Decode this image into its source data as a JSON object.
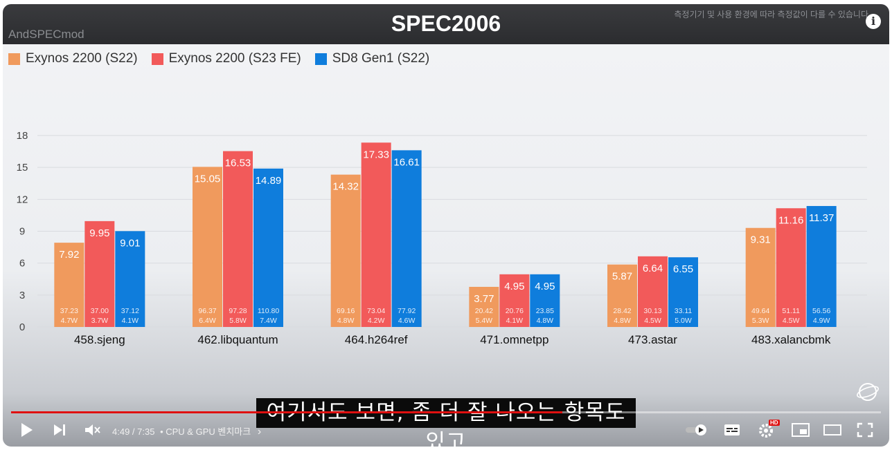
{
  "video": {
    "watermark": "AndSPECmod",
    "disclaimer": "측정기기 및 사용 환경에 따라 측정값이 다를 수 있습니다",
    "info_icon": "i",
    "caption": "여기서도 보면, 좀 더 잘 나오는 항목도 있고",
    "time": "4:49 / 7:35",
    "chapter": "• CPU & GPU 벤치마크",
    "chapter_chevron": "›",
    "progress": 0.634,
    "hd_badge": "HD",
    "icons": [
      "play-icon",
      "next-icon",
      "mute-icon",
      "autoplay-toggle-icon",
      "subtitles-icon",
      "settings-icon",
      "miniplayer-icon",
      "theater-icon",
      "fullscreen-icon"
    ]
  },
  "chart_data": {
    "type": "bar",
    "title": "SPEC2006",
    "categories": [
      "458.sjeng",
      "462.libquantum",
      "464.h264ref",
      "471.omnetpp",
      "473.astar",
      "483.xalancbmk"
    ],
    "series": [
      {
        "name": "Exynos 2200 (S22)",
        "color": "#f09a5d",
        "values": [
          7.92,
          15.05,
          14.32,
          3.77,
          5.87,
          9.31
        ],
        "sub_top": [
          "37.23",
          "96.37",
          "69.16",
          "20.42",
          "28.42",
          "49.64"
        ],
        "sub_bottom": [
          "4.7W",
          "6.4W",
          "4.8W",
          "5.4W",
          "4.8W",
          "5.3W"
        ]
      },
      {
        "name": "Exynos 2200 (S23 FE)",
        "color": "#f25a5a",
        "values": [
          9.95,
          16.53,
          17.33,
          4.95,
          6.64,
          11.16
        ],
        "sub_top": [
          "37.00",
          "97.28",
          "73.04",
          "20.76",
          "30.13",
          "51.11"
        ],
        "sub_bottom": [
          "3.7W",
          "5.8W",
          "4.2W",
          "4.1W",
          "4.5W",
          "4.5W"
        ]
      },
      {
        "name": "SD8 Gen1 (S22)",
        "color": "#0f7ddc",
        "values": [
          9.01,
          14.89,
          16.61,
          4.95,
          6.55,
          11.37
        ],
        "sub_top": [
          "37.12",
          "110.80",
          "77.92",
          "23.85",
          "33.11",
          "56.56"
        ],
        "sub_bottom": [
          "4.1W",
          "7.4W",
          "4.6W",
          "4.8W",
          "5.0W",
          "4.9W"
        ]
      }
    ],
    "yticks": [
      0,
      3,
      6,
      9,
      12,
      15,
      18
    ],
    "ylim": [
      0,
      18
    ],
    "grid": true,
    "legend_position": "top-left"
  }
}
